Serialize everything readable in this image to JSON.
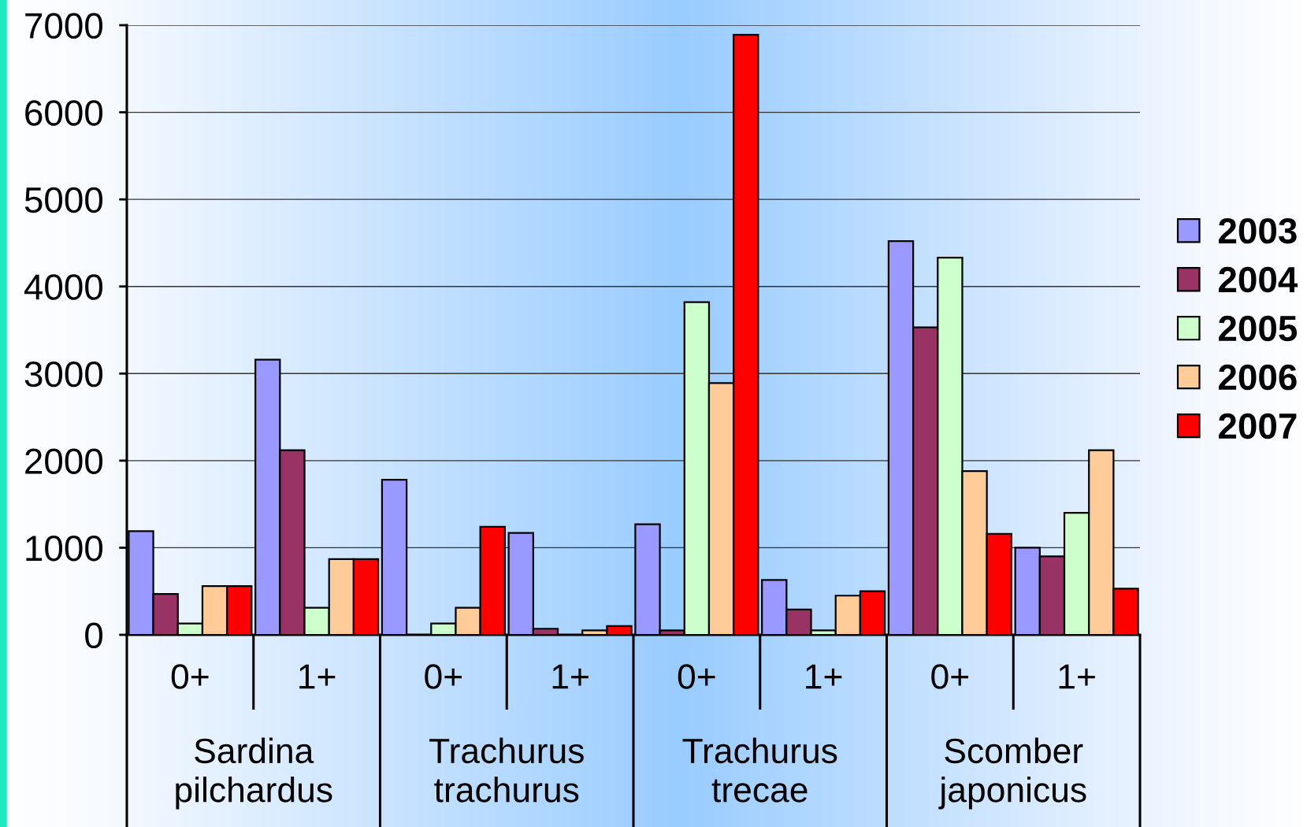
{
  "chart_data": {
    "type": "bar",
    "categories": [
      "0+",
      "1+",
      "0+",
      "1+",
      "0+",
      "1+",
      "0+",
      "1+"
    ],
    "series": [
      {
        "name": "2003",
        "color": "#9999ff",
        "values": [
          1190,
          3160,
          1780,
          1170,
          1270,
          630,
          4520,
          1000
        ]
      },
      {
        "name": "2004",
        "color": "#993366",
        "values": [
          470,
          2120,
          null,
          70,
          50,
          290,
          3530,
          900
        ]
      },
      {
        "name": "2005",
        "color": "#ccffcc",
        "values": [
          130,
          310,
          130,
          null,
          3820,
          50,
          4330,
          1400
        ]
      },
      {
        "name": "2006",
        "color": "#ffcc99",
        "values": [
          560,
          870,
          310,
          50,
          2890,
          450,
          1880,
          2120
        ]
      },
      {
        "name": "2007",
        "color": "#ff0000",
        "values": [
          560,
          870,
          1240,
          100,
          6890,
          500,
          1160,
          530
        ]
      }
    ],
    "ylim": [
      0,
      7000
    ],
    "yticks": [
      0,
      1000,
      2000,
      3000,
      4000,
      5000,
      6000,
      7000
    ],
    "grid": "y",
    "legend": "right",
    "annotations": [
      "Sardina\npilchardus",
      "Trachurus\ntrachurus",
      "Trachurus\ntrecae",
      "Scomber\njaponicus"
    ]
  }
}
